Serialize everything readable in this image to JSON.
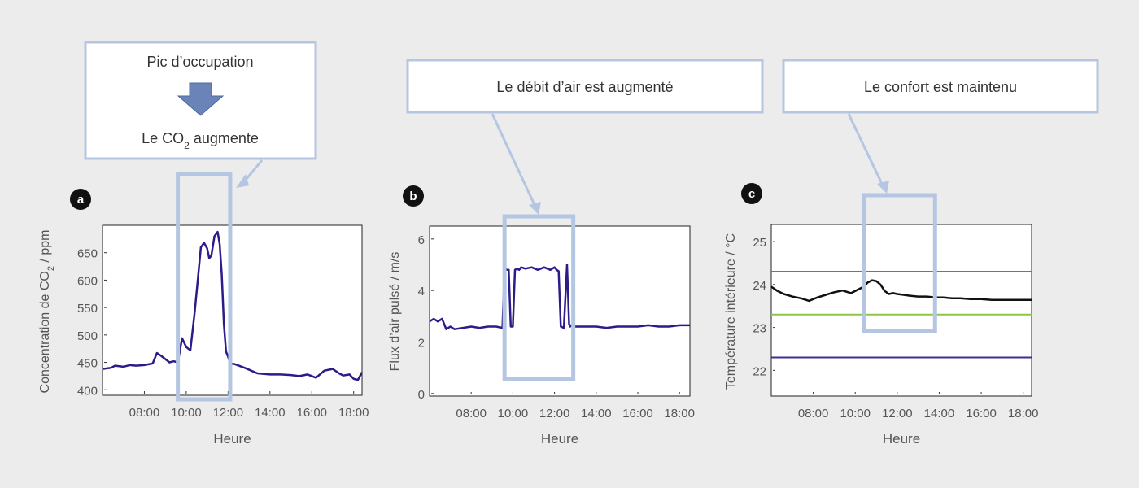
{
  "colors": {
    "background": "#ececec",
    "callout_border": "#b4c6e2",
    "highlight_box": "#b4c6e2",
    "series_line": "#2d1b8a",
    "temp_line": "#111111",
    "upper_limit": "#d8502f",
    "setpoint": "#8dc63f",
    "lower_limit": "#3d2f96",
    "arrow_fill": "#6b84b8"
  },
  "callouts": {
    "a_line1": "Pic d’occupation",
    "a_line2_prefix": "Le CO",
    "a_line2_sub": "2",
    "a_line2_suffix": " augmente",
    "b_text": "Le débit d’air est augmenté",
    "c_text": "Le confort est maintenu"
  },
  "chart_data": [
    {
      "panel": "a",
      "type": "line",
      "ylabel_prefix": "Concentration de CO",
      "ylabel_sub": "2",
      "ylabel_suffix": " / ppm",
      "xlabel": "Heure",
      "xlim": [
        6.0,
        18.4
      ],
      "ylim": [
        390,
        700
      ],
      "x_ticks": [
        8,
        10,
        12,
        14,
        16,
        18
      ],
      "x_tick_labels": [
        "08:00",
        "10:00",
        "12:00",
        "14:00",
        "16:00",
        "18:00"
      ],
      "y_ticks": [
        400,
        450,
        500,
        550,
        600,
        650
      ],
      "y_tick_labels": [
        "400",
        "450",
        "500",
        "550",
        "600",
        "650"
      ],
      "highlight_x": [
        9.6,
        12.1
      ],
      "series": [
        {
          "x": [
            6.0,
            6.4,
            6.6,
            7.0,
            7.3,
            7.6,
            8.0,
            8.4,
            8.6,
            8.8,
            9.0,
            9.2,
            9.4,
            9.6,
            9.8,
            10.0,
            10.2,
            10.4,
            10.55,
            10.7,
            10.85,
            11.0,
            11.1,
            11.2,
            11.35,
            11.5,
            11.6,
            11.7,
            11.8,
            11.9,
            12.0,
            12.1,
            12.3,
            12.8,
            13.4,
            14.0,
            14.5,
            15.0,
            15.4,
            15.8,
            16.2,
            16.6,
            17.0,
            17.3,
            17.5,
            17.8,
            18.0,
            18.2,
            18.4
          ],
          "y": [
            438,
            440,
            444,
            442,
            445,
            444,
            445,
            448,
            467,
            462,
            456,
            450,
            452,
            450,
            494,
            478,
            472,
            540,
            600,
            660,
            668,
            658,
            640,
            645,
            680,
            688,
            665,
            610,
            520,
            470,
            460,
            448,
            447,
            440,
            430,
            428,
            428,
            427,
            425,
            428,
            422,
            435,
            438,
            430,
            426,
            428,
            420,
            418,
            432
          ]
        }
      ]
    },
    {
      "panel": "b",
      "type": "line",
      "ylabel": "Flux d’air pulsé / m/s",
      "xlabel": "Heure",
      "xlim": [
        6.0,
        18.5
      ],
      "ylim": [
        -0.1,
        6.5
      ],
      "x_ticks": [
        8,
        10,
        12,
        14,
        16,
        18
      ],
      "x_tick_labels": [
        "08:00",
        "10:00",
        "12:00",
        "14:00",
        "16:00",
        "18:00"
      ],
      "y_ticks": [
        0,
        2,
        4,
        6
      ],
      "y_tick_labels": [
        "0",
        "2",
        "4",
        "6"
      ],
      "highlight_x": [
        9.6,
        12.9
      ],
      "series": [
        {
          "x": [
            6.0,
            6.2,
            6.4,
            6.6,
            6.8,
            7.0,
            7.2,
            7.6,
            8.0,
            8.4,
            8.8,
            9.2,
            9.5,
            9.6,
            9.7,
            9.8,
            9.9,
            10.0,
            10.1,
            10.2,
            10.3,
            10.4,
            10.6,
            10.9,
            11.2,
            11.5,
            11.8,
            12.0,
            12.1,
            12.2,
            12.3,
            12.45,
            12.6,
            12.7,
            12.75,
            12.8,
            13.0,
            13.5,
            14.0,
            14.5,
            15.0,
            15.5,
            16.0,
            16.5,
            17.0,
            17.5,
            18.0,
            18.5
          ],
          "y": [
            2.8,
            2.9,
            2.8,
            2.9,
            2.5,
            2.6,
            2.5,
            2.55,
            2.6,
            2.55,
            2.6,
            2.6,
            2.55,
            4.9,
            4.8,
            4.8,
            2.6,
            2.6,
            4.8,
            4.85,
            4.8,
            4.9,
            4.85,
            4.9,
            4.8,
            4.9,
            4.8,
            4.9,
            4.8,
            4.75,
            2.6,
            2.55,
            5.0,
            2.7,
            2.6,
            2.65,
            2.6,
            2.6,
            2.6,
            2.55,
            2.6,
            2.6,
            2.6,
            2.65,
            2.6,
            2.6,
            2.65,
            2.65
          ]
        }
      ]
    },
    {
      "panel": "c",
      "type": "line",
      "ylabel": "Température intérieure / °C",
      "xlabel": "Heure",
      "xlim": [
        6.0,
        18.4
      ],
      "ylim": [
        21.4,
        25.4
      ],
      "x_ticks": [
        8,
        10,
        12,
        14,
        16,
        18
      ],
      "x_tick_labels": [
        "08:00",
        "10:00",
        "12:00",
        "14:00",
        "16:00",
        "18:00"
      ],
      "y_ticks": [
        22,
        23,
        24,
        25
      ],
      "y_tick_labels": [
        "22",
        "23",
        "24",
        "25"
      ],
      "highlight_x": [
        10.4,
        13.8
      ],
      "reference_lines": [
        {
          "y": 24.3,
          "color": "#d8502f"
        },
        {
          "y": 23.3,
          "color": "#8dc63f"
        },
        {
          "y": 22.3,
          "color": "#3d2f96"
        }
      ],
      "series": [
        {
          "x": [
            6.0,
            6.3,
            6.6,
            7.0,
            7.4,
            7.8,
            8.2,
            8.6,
            9.0,
            9.4,
            9.8,
            10.2,
            10.4,
            10.6,
            10.8,
            11.0,
            11.2,
            11.4,
            11.6,
            11.8,
            12.0,
            12.3,
            12.6,
            13.0,
            13.4,
            13.8,
            14.2,
            14.6,
            15.0,
            15.5,
            16.0,
            16.5,
            17.0,
            17.5,
            18.0,
            18.4
          ],
          "y": [
            23.95,
            23.85,
            23.78,
            23.72,
            23.68,
            23.62,
            23.7,
            23.76,
            23.82,
            23.86,
            23.8,
            23.9,
            23.95,
            24.05,
            24.1,
            24.08,
            24.0,
            23.85,
            23.78,
            23.8,
            23.78,
            23.76,
            23.74,
            23.72,
            23.72,
            23.7,
            23.7,
            23.68,
            23.68,
            23.66,
            23.66,
            23.64,
            23.64,
            23.64,
            23.64,
            23.64
          ]
        }
      ]
    }
  ]
}
